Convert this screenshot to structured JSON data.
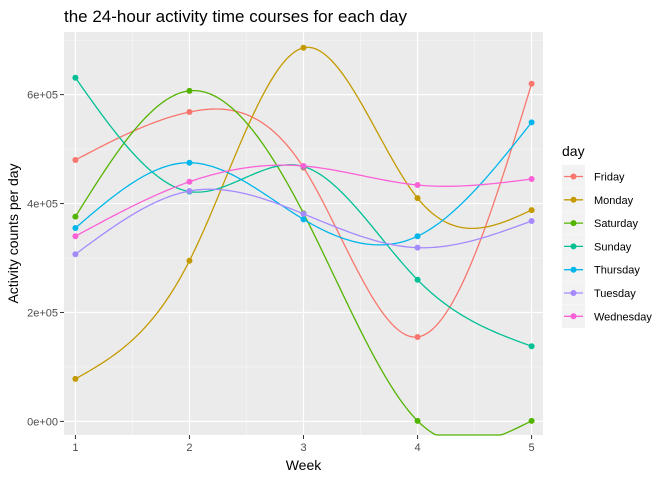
{
  "chart_data": {
    "type": "line",
    "title": "the 24-hour activity time courses for each day",
    "xlabel": "Week",
    "ylabel": "Activity counts per day",
    "x": [
      1,
      2,
      3,
      4,
      5
    ],
    "xlim": [
      0.9,
      5.1
    ],
    "ylim": [
      -25000,
      715000
    ],
    "x_ticks": [
      1,
      2,
      3,
      4,
      5
    ],
    "y_ticks": [
      0,
      200000,
      400000,
      600000
    ],
    "y_tick_labels": [
      "0e+00",
      "2e+05",
      "4e+05",
      "6e+05"
    ],
    "grid": true,
    "legend": {
      "title": "day",
      "placement": "right"
    },
    "series": [
      {
        "name": "Friday",
        "color": "#F8766D",
        "values": [
          480000,
          568000,
          466000,
          155000,
          620000
        ]
      },
      {
        "name": "Monday",
        "color": "#C49A00",
        "values": [
          78000,
          295000,
          686000,
          410000,
          388000
        ]
      },
      {
        "name": "Saturday",
        "color": "#53B400",
        "values": [
          376000,
          607000,
          382000,
          1000,
          1000
        ]
      },
      {
        "name": "Sunday",
        "color": "#00C094",
        "values": [
          631000,
          422000,
          468000,
          260000,
          138000
        ]
      },
      {
        "name": "Thursday",
        "color": "#00B6EB",
        "values": [
          355000,
          475000,
          371000,
          340000,
          549000
        ]
      },
      {
        "name": "Tuesday",
        "color": "#A58AFF",
        "values": [
          307000,
          423000,
          381000,
          319000,
          368000
        ]
      },
      {
        "name": "Wednesday",
        "color": "#FB61D7",
        "values": [
          340000,
          440000,
          469000,
          434000,
          445000
        ]
      }
    ]
  }
}
